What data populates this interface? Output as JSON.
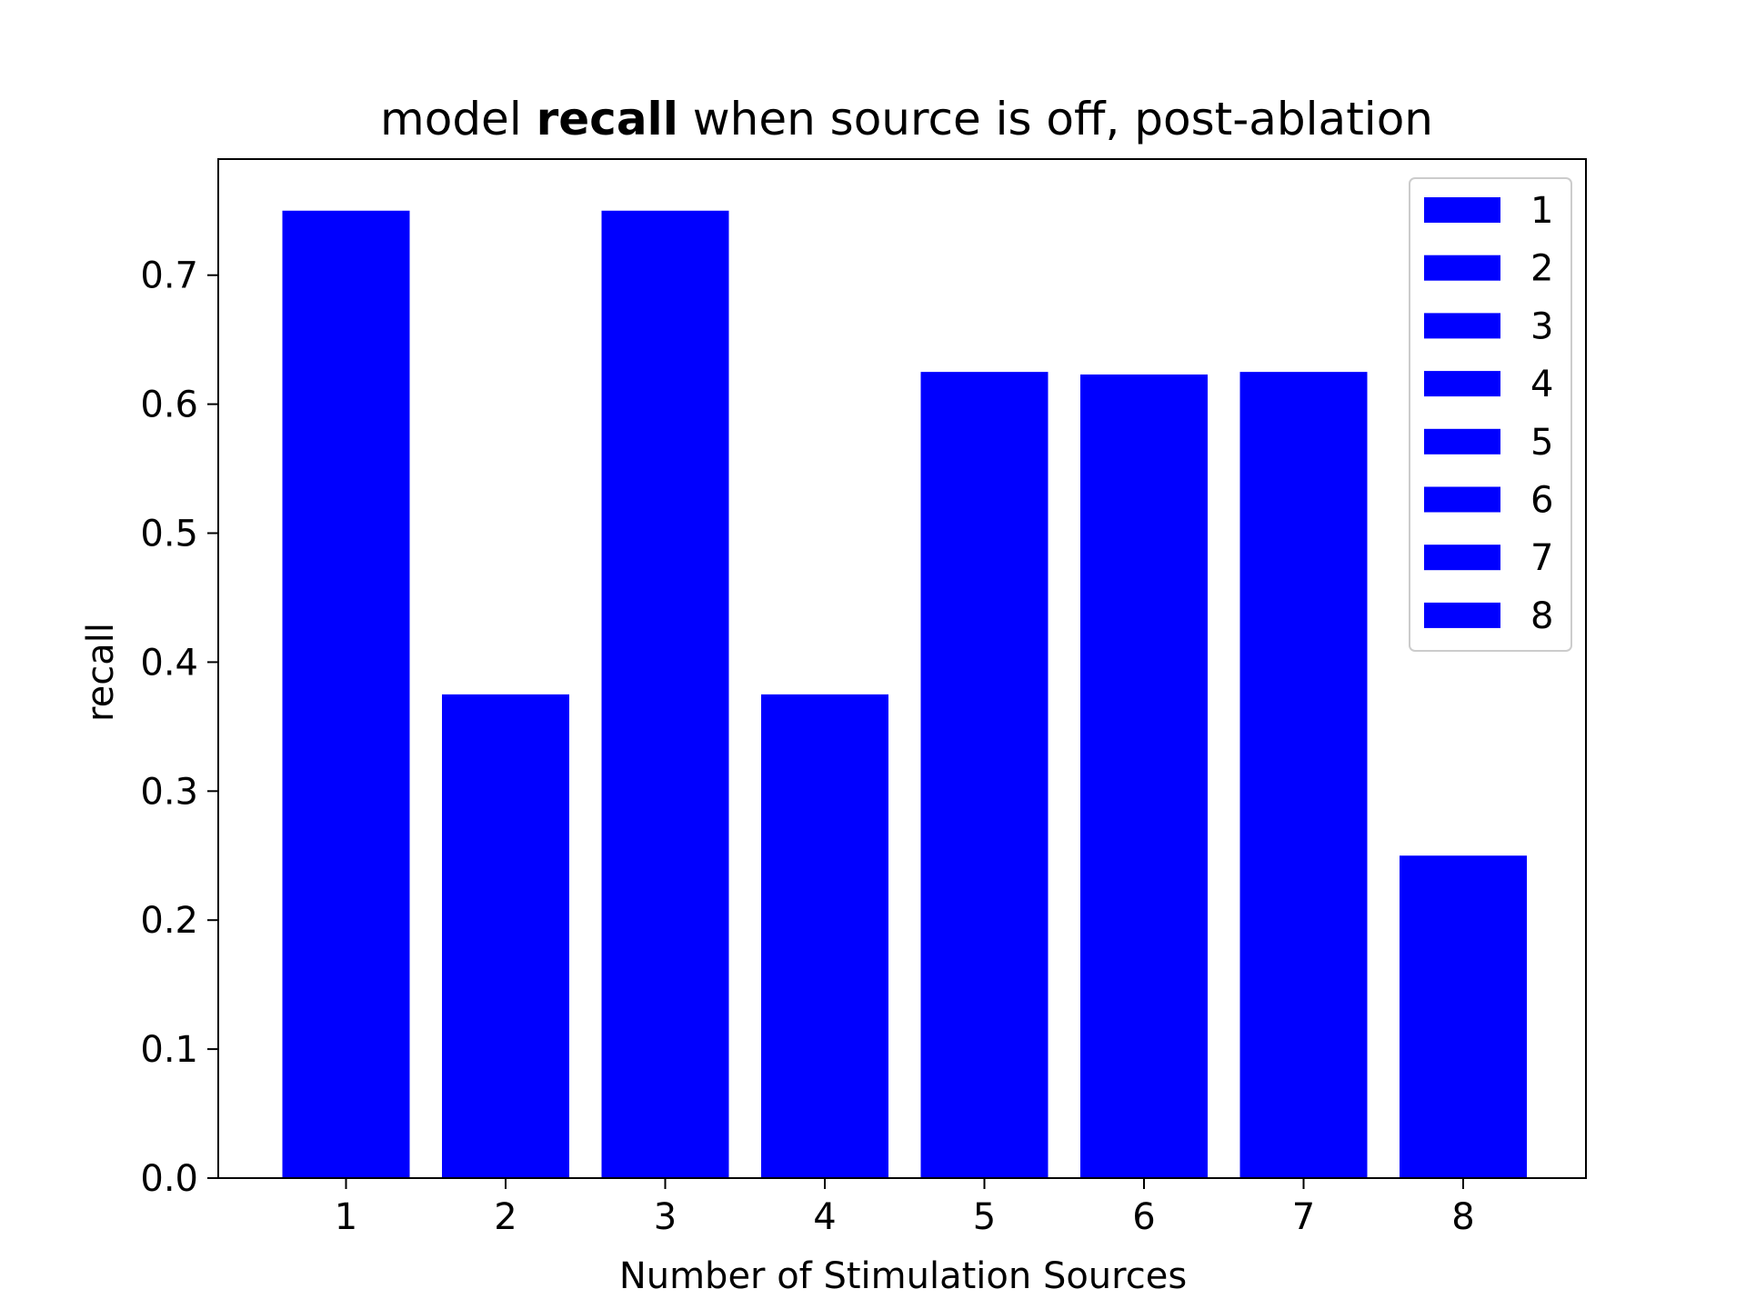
{
  "chart_data": {
    "type": "bar",
    "title_parts": [
      "model ",
      "recall",
      " when source is off, post-ablation"
    ],
    "xlabel": "Number of Stimulation Sources",
    "ylabel": "recall",
    "categories": [
      "1",
      "2",
      "3",
      "4",
      "5",
      "6",
      "7",
      "8"
    ],
    "values": [
      0.75,
      0.375,
      0.75,
      0.375,
      0.625,
      0.623,
      0.625,
      0.25
    ],
    "ylim": [
      0,
      0.79
    ],
    "yticks": [
      0.0,
      0.1,
      0.2,
      0.3,
      0.4,
      0.5,
      0.6,
      0.7
    ],
    "ytick_labels": [
      "0.0",
      "0.1",
      "0.2",
      "0.3",
      "0.4",
      "0.5",
      "0.6",
      "0.7"
    ],
    "legend": {
      "placement": "top-right",
      "entries": [
        "1",
        "2",
        "3",
        "4",
        "5",
        "6",
        "7",
        "8"
      ]
    },
    "bar_color": "#0000ff",
    "grid": false
  }
}
